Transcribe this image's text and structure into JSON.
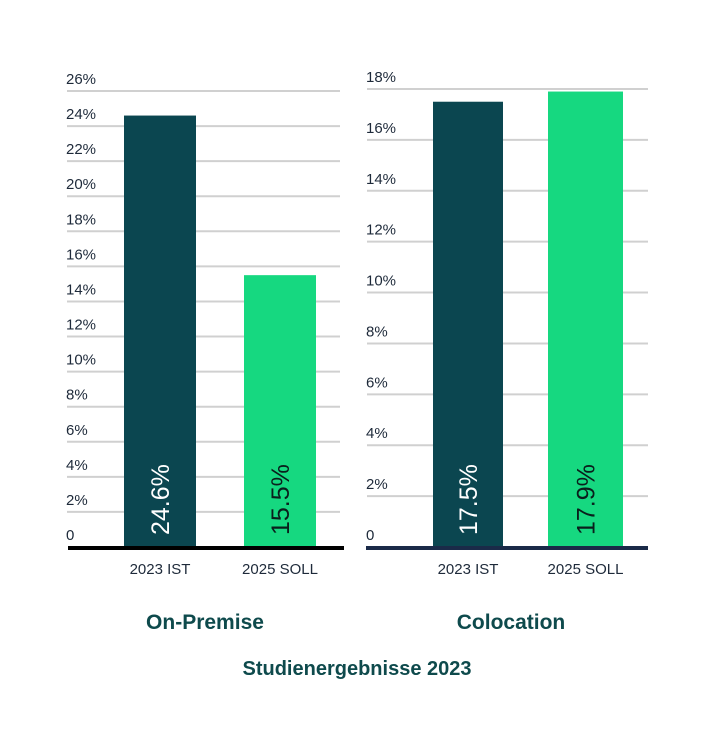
{
  "title": "Studienergebnisse 2023",
  "colors": {
    "ist": "#0b4650",
    "soll": "#16d880",
    "grid": "#d0d0d0",
    "title": "#0e4a4c"
  },
  "chart_data": [
    {
      "type": "bar",
      "title": "On-Premise",
      "categories": [
        "2023 IST",
        "2025 SOLL"
      ],
      "values": [
        24.6,
        15.5
      ],
      "value_labels": [
        "24.6%",
        "15.5%"
      ],
      "ylim": [
        0,
        26
      ],
      "yticks": [
        "0",
        "2%",
        "4%",
        "6%",
        "8%",
        "10%",
        "12%",
        "14%",
        "16%",
        "18%",
        "20%",
        "22%",
        "24%",
        "26%"
      ],
      "grid": true
    },
    {
      "type": "bar",
      "title": "Colocation",
      "categories": [
        "2023 IST",
        "2025 SOLL"
      ],
      "values": [
        17.5,
        17.9
      ],
      "value_labels": [
        "17.5%",
        "17.9%"
      ],
      "ylim": [
        0,
        18
      ],
      "yticks": [
        "0",
        "2%",
        "4%",
        "6%",
        "8%",
        "10%",
        "12%",
        "14%",
        "16%",
        "18%"
      ],
      "grid": true
    }
  ]
}
